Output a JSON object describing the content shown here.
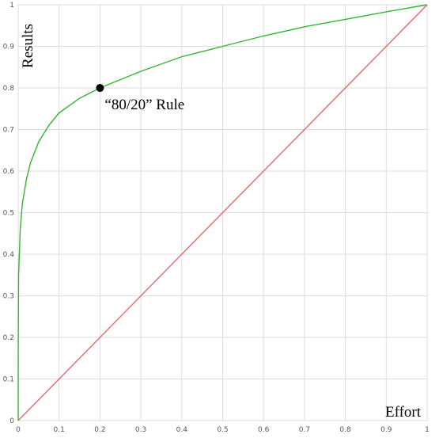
{
  "chart_data": {
    "type": "line",
    "title": "",
    "xlabel": "Effort",
    "ylabel": "Results",
    "xlim": [
      0,
      1
    ],
    "ylim": [
      0,
      1
    ],
    "grid": true,
    "x_ticks": [
      "0",
      "0.1",
      "0.2",
      "0.3",
      "0.4",
      "0.5",
      "0.6",
      "0.7",
      "0.8",
      "0.9",
      "1"
    ],
    "y_ticks": [
      "0",
      "0.1",
      "0.2",
      "0.3",
      "0.4",
      "0.5",
      "0.6",
      "0.7",
      "0.8",
      "0.9",
      "1"
    ],
    "series": [
      {
        "color": "#33b533",
        "x": [
          0,
          0.0001,
          0.001,
          0.005,
          0.01,
          0.02,
          0.03,
          0.05,
          0.075,
          0.1,
          0.15,
          0.2,
          0.25,
          0.3,
          0.4,
          0.5,
          0.6,
          0.7,
          0.8,
          0.9,
          1
        ],
        "y": [
          0,
          0.18,
          0.35,
          0.46,
          0.52,
          0.58,
          0.62,
          0.67,
          0.71,
          0.74,
          0.775,
          0.8,
          0.82,
          0.84,
          0.875,
          0.9,
          0.925,
          0.947,
          0.965,
          0.983,
          1
        ]
      },
      {
        "color": "#e36a6a",
        "x": [
          0,
          1
        ],
        "y": [
          0,
          1
        ]
      }
    ],
    "annotations": [
      {
        "text": "“80/20” Rule",
        "x": 0.2,
        "y": 0.8
      }
    ]
  }
}
